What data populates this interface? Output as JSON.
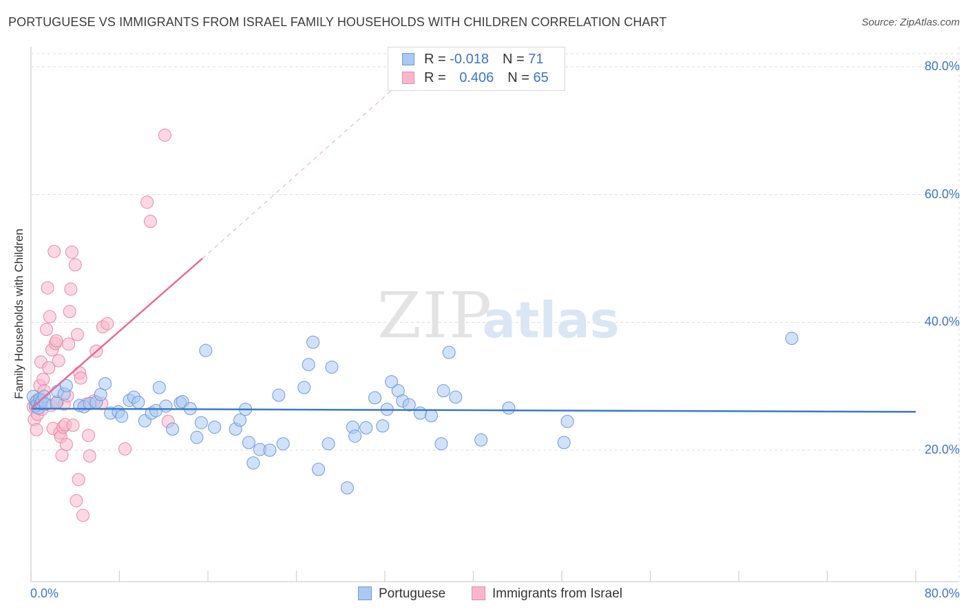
{
  "header": {
    "title": "PORTUGUESE VS IMMIGRANTS FROM ISRAEL FAMILY HOUSEHOLDS WITH CHILDREN CORRELATION CHART",
    "source": "Source: ZipAtlas.com"
  },
  "watermark": {
    "zip": "ZIP",
    "atlas": "atlas"
  },
  "legend": {
    "r_label": "R =",
    "n_label": "N =",
    "series": [
      {
        "name": "Portuguese",
        "r": "-0.018",
        "n": "71",
        "fill": "#aac8f2",
        "stroke": "#6f9ad8"
      },
      {
        "name": "Immigrants from Israel",
        "r": "0.406",
        "n": "65",
        "fill": "#f8b8cc",
        "stroke": "#e889a6"
      }
    ]
  },
  "colors": {
    "blue_line": "#3a78c9",
    "pink_line": "#e86a95",
    "grid": "#dcdcdc",
    "axis_text": "#3d74c6"
  },
  "chart_data": {
    "type": "scatter",
    "title": "PORTUGUESE VS IMMIGRANTS FROM ISRAEL FAMILY HOUSEHOLDS WITH CHILDREN CORRELATION CHART",
    "xlabel": "",
    "ylabel": "Family Households with Children",
    "xlim": [
      0,
      80
    ],
    "ylim": [
      0,
      82
    ],
    "x_tick_labels": [
      {
        "value": 0,
        "label": "0.0%"
      },
      {
        "value": 80,
        "label": "80.0%"
      }
    ],
    "y_tick_labels": [
      {
        "value": 20,
        "label": "20.0%"
      },
      {
        "value": 40,
        "label": "40.0%"
      },
      {
        "value": 60,
        "label": "60.0%"
      },
      {
        "value": 80,
        "label": "80.0%"
      }
    ],
    "grid": true,
    "legend_position": "top-center",
    "series": [
      {
        "name": "Portuguese",
        "trend": {
          "x0": 0,
          "y0": 26.5,
          "x1": 80,
          "y1": 26.0
        },
        "points": [
          [
            0.2,
            28.4
          ],
          [
            0.4,
            26.9
          ],
          [
            0.5,
            27.6
          ],
          [
            0.6,
            27.2
          ],
          [
            0.7,
            26.6
          ],
          [
            0.8,
            28.0
          ],
          [
            0.9,
            27.3
          ],
          [
            1.0,
            27.8
          ],
          [
            1.2,
            28.4
          ],
          [
            1.3,
            27.2
          ],
          [
            2.3,
            27.4
          ],
          [
            2.4,
            29.2
          ],
          [
            3.0,
            28.8
          ],
          [
            3.2,
            30.1
          ],
          [
            4.4,
            27.0
          ],
          [
            4.8,
            26.8
          ],
          [
            5.3,
            27.3
          ],
          [
            5.9,
            27.5
          ],
          [
            6.3,
            28.7
          ],
          [
            6.7,
            30.4
          ],
          [
            7.2,
            25.8
          ],
          [
            7.9,
            26.0
          ],
          [
            8.2,
            25.3
          ],
          [
            8.9,
            27.8
          ],
          [
            9.3,
            28.3
          ],
          [
            9.7,
            27.5
          ],
          [
            10.3,
            24.6
          ],
          [
            10.9,
            25.8
          ],
          [
            11.3,
            26.2
          ],
          [
            11.6,
            29.8
          ],
          [
            12.2,
            26.9
          ],
          [
            12.8,
            23.3
          ],
          [
            13.5,
            27.4
          ],
          [
            13.7,
            27.6
          ],
          [
            14.4,
            26.5
          ],
          [
            15.0,
            22.0
          ],
          [
            15.4,
            24.3
          ],
          [
            15.8,
            35.6
          ],
          [
            16.6,
            23.6
          ],
          [
            18.5,
            23.3
          ],
          [
            18.9,
            24.7
          ],
          [
            19.4,
            26.4
          ],
          [
            19.7,
            21.2
          ],
          [
            20.1,
            18.0
          ],
          [
            20.7,
            20.1
          ],
          [
            21.6,
            20.0
          ],
          [
            22.4,
            28.6
          ],
          [
            22.8,
            21.0
          ],
          [
            24.7,
            29.8
          ],
          [
            25.1,
            33.4
          ],
          [
            25.5,
            36.9
          ],
          [
            26.0,
            17.0
          ],
          [
            26.9,
            21.0
          ],
          [
            27.2,
            33.0
          ],
          [
            28.6,
            14.1
          ],
          [
            29.1,
            23.6
          ],
          [
            29.3,
            22.2
          ],
          [
            30.3,
            23.5
          ],
          [
            31.1,
            28.2
          ],
          [
            31.8,
            23.8
          ],
          [
            32.2,
            26.4
          ],
          [
            32.6,
            30.7
          ],
          [
            33.2,
            29.3
          ],
          [
            33.6,
            27.7
          ],
          [
            34.2,
            27.1
          ],
          [
            35.2,
            25.8
          ],
          [
            36.2,
            25.4
          ],
          [
            37.1,
            21.0
          ],
          [
            37.3,
            29.3
          ],
          [
            37.8,
            35.3
          ],
          [
            38.4,
            28.3
          ],
          [
            40.7,
            21.6
          ],
          [
            43.2,
            26.6
          ],
          [
            48.2,
            21.2
          ],
          [
            48.5,
            24.5
          ],
          [
            68.8,
            37.5
          ]
        ]
      },
      {
        "name": "Immigrants from Israel",
        "trend": {
          "x0": 0,
          "y0": 26.5,
          "x1": 15.5,
          "y1": 50.0,
          "dash_x1": 35.0,
          "dash_y1": 80.0
        },
        "points": [
          [
            0.2,
            26.8
          ],
          [
            0.3,
            24.8
          ],
          [
            0.4,
            27.6
          ],
          [
            0.5,
            23.2
          ],
          [
            0.6,
            25.6
          ],
          [
            0.6,
            27.9
          ],
          [
            0.7,
            27.0
          ],
          [
            0.8,
            30.1
          ],
          [
            0.9,
            33.8
          ],
          [
            1.0,
            26.4
          ],
          [
            1.1,
            31.1
          ],
          [
            1.2,
            29.3
          ],
          [
            1.4,
            38.9
          ],
          [
            1.5,
            45.4
          ],
          [
            1.6,
            32.9
          ],
          [
            1.7,
            40.9
          ],
          [
            1.8,
            27.0
          ],
          [
            1.9,
            35.7
          ],
          [
            2.0,
            23.4
          ],
          [
            2.1,
            51.1
          ],
          [
            2.2,
            36.7
          ],
          [
            2.3,
            37.1
          ],
          [
            2.4,
            27.6
          ],
          [
            2.5,
            34.0
          ],
          [
            2.6,
            22.7
          ],
          [
            2.7,
            22.1
          ],
          [
            2.8,
            19.2
          ],
          [
            2.9,
            23.6
          ],
          [
            3.0,
            27.2
          ],
          [
            3.1,
            24.0
          ],
          [
            3.2,
            20.9
          ],
          [
            3.3,
            28.5
          ],
          [
            3.4,
            36.6
          ],
          [
            3.5,
            41.7
          ],
          [
            3.6,
            45.2
          ],
          [
            3.7,
            51.0
          ],
          [
            3.8,
            23.9
          ],
          [
            4.0,
            49.0
          ],
          [
            4.1,
            12.1
          ],
          [
            4.2,
            38.1
          ],
          [
            4.3,
            15.4
          ],
          [
            4.4,
            32.1
          ],
          [
            4.5,
            31.3
          ],
          [
            4.7,
            9.8
          ],
          [
            5.0,
            27.2
          ],
          [
            5.2,
            22.3
          ],
          [
            5.3,
            19.1
          ],
          [
            5.7,
            27.7
          ],
          [
            5.9,
            35.5
          ],
          [
            6.4,
            27.3
          ],
          [
            6.5,
            39.3
          ],
          [
            6.9,
            39.8
          ],
          [
            8.5,
            20.2
          ],
          [
            10.5,
            58.8
          ],
          [
            10.8,
            55.8
          ],
          [
            12.1,
            69.3
          ],
          [
            12.4,
            24.5
          ]
        ]
      }
    ]
  }
}
